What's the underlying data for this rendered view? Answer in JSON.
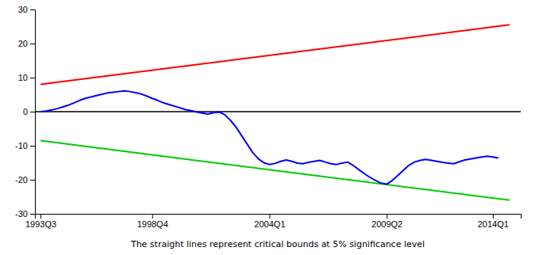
{
  "chart_data": {
    "type": "line",
    "x_label": "The straight lines represent critical bounds at 5% significance level",
    "xlim": [
      1993.5,
      2015.25
    ],
    "ylim": [
      -30,
      30
    ],
    "xticks": [
      {
        "value": 1993.75,
        "label": "1993Q3"
      },
      {
        "value": 1998.75,
        "label": "1998Q4"
      },
      {
        "value": 2004.0,
        "label": "2004Q1"
      },
      {
        "value": 2009.25,
        "label": "2009Q2"
      },
      {
        "value": 2014.0,
        "label": "2014Q1"
      }
    ],
    "yticks": [
      -30,
      -20,
      -10,
      0,
      10,
      20,
      30
    ],
    "grid": false,
    "series": [
      {
        "color": "#FF0000",
        "x": [
          1993.75,
          2014.75
        ],
        "values": [
          8.0,
          25.5
        ]
      },
      {
        "color": "#00CC00",
        "x": [
          1993.75,
          2014.75
        ],
        "values": [
          -8.5,
          -26.0
        ]
      },
      {
        "type": "hline",
        "color": "#000000",
        "values": [
          0
        ]
      },
      {
        "color": "#0000FF",
        "x": [
          1993.75,
          1994.0,
          1994.25,
          1994.5,
          1994.75,
          1995.0,
          1995.25,
          1995.5,
          1995.75,
          1996.0,
          1996.25,
          1996.5,
          1996.75,
          1997.0,
          1997.25,
          1997.5,
          1997.75,
          1998.0,
          1998.25,
          1998.5,
          1998.75,
          1999.0,
          1999.25,
          1999.5,
          1999.75,
          2000.0,
          2000.25,
          2000.5,
          2000.75,
          2001.0,
          2001.25,
          2001.5,
          2001.75,
          2002.0,
          2002.25,
          2002.5,
          2002.75,
          2003.0,
          2003.25,
          2003.5,
          2003.75,
          2004.0,
          2004.25,
          2004.5,
          2004.75,
          2005.0,
          2005.25,
          2005.5,
          2005.75,
          2006.0,
          2006.25,
          2006.5,
          2006.75,
          2007.0,
          2007.25,
          2007.5,
          2007.75,
          2008.0,
          2008.25,
          2008.5,
          2008.75,
          2009.0,
          2009.25,
          2009.5,
          2009.75,
          2010.0,
          2010.25,
          2010.5,
          2010.75,
          2011.0,
          2011.25,
          2011.5,
          2011.75,
          2012.0,
          2012.25,
          2012.5,
          2012.75,
          2013.0,
          2013.25,
          2013.5,
          2013.75,
          2014.0,
          2014.25
        ],
        "values": [
          0.0,
          0.2,
          0.5,
          0.9,
          1.4,
          1.9,
          2.6,
          3.3,
          3.9,
          4.3,
          4.7,
          5.1,
          5.5,
          5.7,
          5.9,
          6.1,
          5.9,
          5.6,
          5.2,
          4.6,
          3.9,
          3.3,
          2.6,
          2.1,
          1.6,
          1.1,
          0.6,
          0.3,
          -0.1,
          -0.4,
          -0.7,
          -0.3,
          -0.1,
          -0.9,
          -2.5,
          -4.5,
          -7.0,
          -9.5,
          -12.0,
          -13.8,
          -15.0,
          -15.5,
          -15.2,
          -14.6,
          -14.2,
          -14.6,
          -15.1,
          -15.3,
          -14.9,
          -14.6,
          -14.3,
          -14.8,
          -15.3,
          -15.5,
          -15.1,
          -14.8,
          -15.8,
          -17.0,
          -18.2,
          -19.3,
          -20.2,
          -21.0,
          -21.3,
          -20.2,
          -18.7,
          -17.2,
          -15.7,
          -14.8,
          -14.3,
          -14.0,
          -14.3,
          -14.6,
          -14.9,
          -15.1,
          -15.3,
          -14.7,
          -14.2,
          -13.9,
          -13.6,
          -13.3,
          -13.1,
          -13.3,
          -13.6
        ]
      }
    ]
  }
}
